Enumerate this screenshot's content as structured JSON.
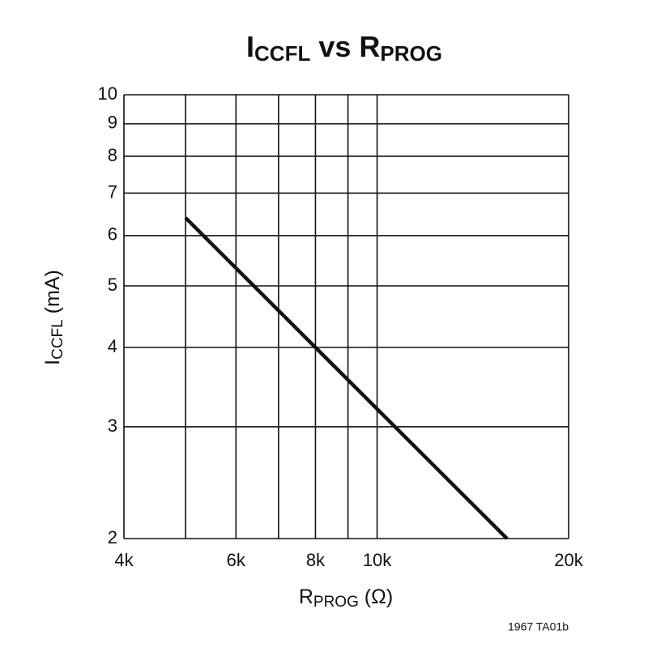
{
  "chart_data": {
    "type": "line",
    "title": {
      "parts": [
        "I",
        "CCFL",
        " vs ",
        "R",
        "PROG"
      ]
    },
    "x_label": {
      "parts": [
        "R",
        "PROG",
        " (Ω)"
      ]
    },
    "y_label": {
      "parts": [
        "I",
        "CCFL",
        " (mA)"
      ]
    },
    "footnote": "1967 TA01b",
    "x": [
      5000,
      8000,
      16000
    ],
    "series": [
      {
        "color": "#111111",
        "values": [
          6.4,
          4,
          2
        ]
      }
    ],
    "xlim": [
      4000,
      20000
    ],
    "ylim": [
      2,
      10
    ],
    "xscale": "log",
    "yscale": "log",
    "xticks": [
      {
        "value": 4000,
        "label": "4k"
      },
      {
        "value": 6000,
        "label": "6k"
      },
      {
        "value": 8000,
        "label": "8k"
      },
      {
        "value": 10000,
        "label": "10k"
      },
      {
        "value": 20000,
        "label": "20k"
      }
    ],
    "xminor": [
      5000,
      7000,
      9000
    ],
    "yticks": [
      2,
      3,
      4,
      5,
      6,
      7,
      8,
      9,
      10
    ],
    "grid": true
  }
}
